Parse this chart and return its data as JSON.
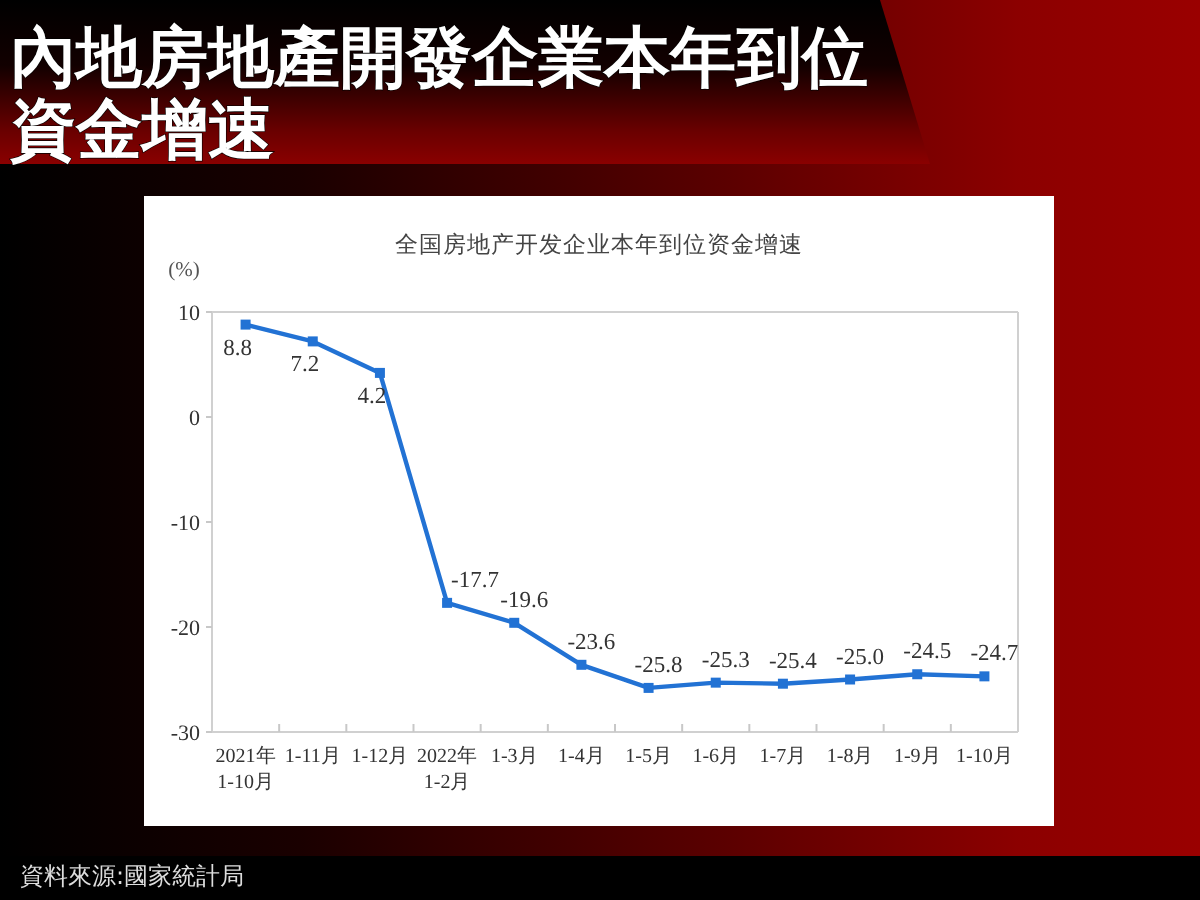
{
  "chart_data": {
    "type": "line",
    "title": "內地房地產開發企業本年到位資金增速",
    "subtitle": "全国房地产开发企业本年到位资金增速",
    "ylabel": "(%)",
    "categories": [
      "2021年\n1-10月",
      "1-11月",
      "1-12月",
      "2022年\n1-2月",
      "1-3月",
      "1-4月",
      "1-5月",
      "1-6月",
      "1-7月",
      "1-8月",
      "1-9月",
      "1-10月"
    ],
    "values": [
      8.8,
      7.2,
      4.2,
      -17.7,
      -19.6,
      -23.6,
      -25.8,
      -25.3,
      -25.4,
      -25.0,
      -24.5,
      -24.7
    ],
    "color": "#2272d4",
    "value_labels": [
      "8.8",
      "7.2",
      "4.2",
      "-17.7",
      "-19.6",
      "-23.6",
      "-25.8",
      "-25.3",
      "-25.4",
      "-25.0",
      "-24.5",
      "-24.7"
    ],
    "ylim": [
      -30,
      10
    ],
    "yticks": [
      -30,
      -20,
      -10,
      0,
      10
    ],
    "marker": "square",
    "line_style": "solid",
    "annotations": [
      "資料來源:國家統計局"
    ]
  }
}
